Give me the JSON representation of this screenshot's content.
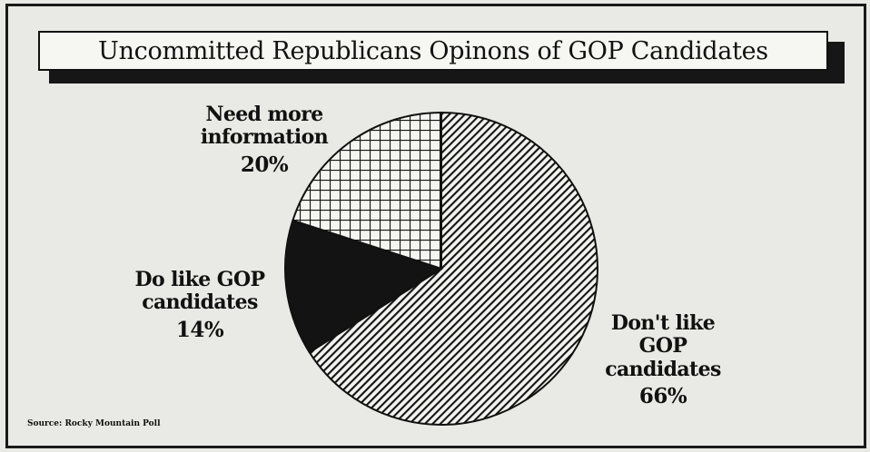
{
  "title": "Uncommitted Republicans Opinons of GOP Candidates",
  "source": "Source: Rocky Mountain Poll",
  "chart_data": {
    "type": "pie",
    "title": "Uncommitted Republicans Opinons of GOP Candidates",
    "slices": [
      {
        "label": "Don't like GOP candidates",
        "value": 66,
        "display": "66%",
        "pattern": "diagonal-hatch"
      },
      {
        "label": "Do like GOP candidates",
        "value": 14,
        "display": "14%",
        "pattern": "solid-black"
      },
      {
        "label": "Need more information",
        "value": 20,
        "display": "20%",
        "pattern": "crosshatch-grid"
      }
    ],
    "start_angle": "12 o'clock",
    "direction": "clockwise",
    "legend": "none (direct labels)",
    "colors": {
      "dark": "#141414",
      "light": "#f4f4f0"
    }
  }
}
